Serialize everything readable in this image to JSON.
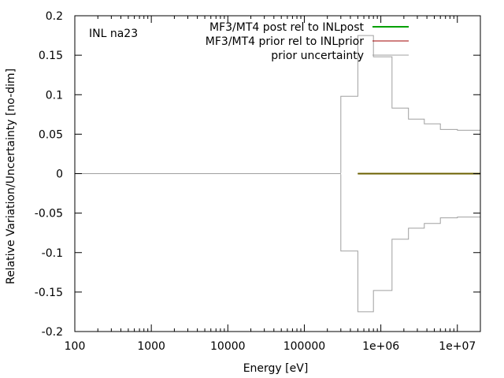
{
  "chart_data": {
    "type": "line",
    "title": "",
    "annotation": "INL na23",
    "xlabel": "Energy [eV]",
    "ylabel": "Relative Variation/Uncertainty [no-dim]",
    "xscale": "log",
    "xlim": [
      100,
      20000000
    ],
    "ylim": [
      -0.2,
      0.2
    ],
    "grid": false,
    "legend_position": "top-right",
    "x_ticks": [
      {
        "value": 100,
        "label": "100"
      },
      {
        "value": 1000,
        "label": "1000"
      },
      {
        "value": 10000,
        "label": "10000"
      },
      {
        "value": 100000,
        "label": "100000"
      },
      {
        "value": 1000000,
        "label": "1e+06"
      },
      {
        "value": 10000000,
        "label": "1e+07"
      }
    ],
    "y_ticks": [
      {
        "value": 0.2,
        "label": "0.2"
      },
      {
        "value": 0.15,
        "label": "0.15"
      },
      {
        "value": 0.1,
        "label": "0.1"
      },
      {
        "value": 0.05,
        "label": "0.05"
      },
      {
        "value": 0,
        "label": "0"
      },
      {
        "value": -0.05,
        "label": "-0.05"
      },
      {
        "value": -0.1,
        "label": "-0.1"
      },
      {
        "value": -0.15,
        "label": "-0.15"
      },
      {
        "value": -0.2,
        "label": "-0.2"
      }
    ],
    "series": [
      {
        "name": "MF3/MT4 post rel to INLpost",
        "color": "#00a000",
        "style": "step",
        "x": [
          500000,
          20000000
        ],
        "y": [
          0,
          0
        ]
      },
      {
        "name": "MF3/MT4 prior rel to INLprior",
        "color": "#a00000",
        "style": "step",
        "x": [
          500000,
          20000000
        ],
        "y": [
          0,
          0
        ]
      },
      {
        "name": "prior uncertainty",
        "color": "#a0a0a0",
        "style": "step",
        "x": [
          100,
          300000,
          500000,
          800000,
          1400000,
          2300000,
          3700000,
          6000000,
          10000000,
          20000000
        ],
        "y": [
          0,
          0.098,
          0.175,
          0.148,
          0.083,
          0.069,
          0.063,
          0.056,
          0.055,
          0.055
        ],
        "mirror": true
      }
    ],
    "dotted_zero_segment": [
      300000,
      500000
    ]
  }
}
